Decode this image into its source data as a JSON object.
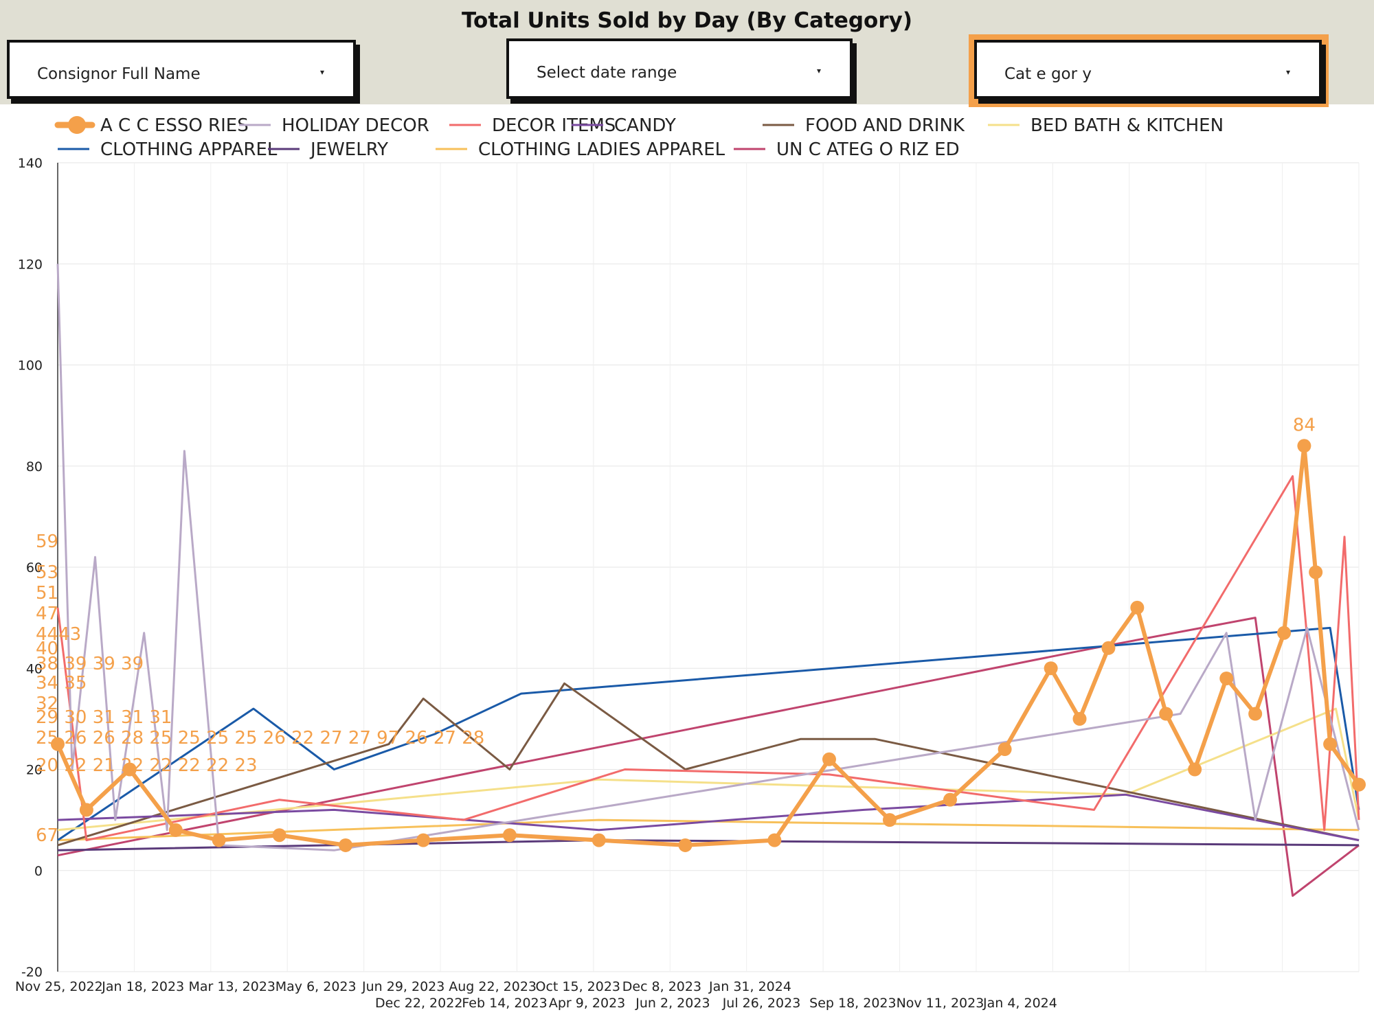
{
  "title": "Total Units Sold by Day (By Category)",
  "filters": {
    "consignor": "Consignor Full Name",
    "date_range": "Select date range",
    "category": "Cat e gor y",
    "caret": "▾"
  },
  "colors": {
    "background_band": "#e0dfd3",
    "category_highlight": "#f4a04a"
  },
  "chart_data": {
    "type": "line",
    "title": "Total Units Sold by Day (By Category)",
    "xlabel": "",
    "ylabel": "",
    "ylim": [
      -20,
      140
    ],
    "y_ticks": [
      140,
      120,
      100,
      80,
      60,
      40,
      20,
      0,
      -20
    ],
    "x_range": [
      "2022-11-25",
      "2024-02-20"
    ],
    "x_ticks_row1": [
      "Nov 25, 2022",
      "Jan 18, 2023",
      "Mar 13, 2023",
      "May 6, 2023",
      "Jun 29, 2023",
      "Aug 22, 2023",
      "Oct 15, 2023",
      "Dec 8, 2023",
      "Jan 31, 2024"
    ],
    "x_ticks_row2": [
      "Dec 22, 2022",
      "Feb 14, 2023",
      "Apr 9, 2023",
      "Jun 2, 2023",
      "Jul 26, 2023",
      "Sep 18, 2023",
      "Nov 11, 2023",
      "Jan 4, 2024"
    ],
    "grid": true,
    "legend_position": "top",
    "series": [
      {
        "name": "A C C ESSO RIES",
        "color": "#f4a04a",
        "points": [
          [
            "2022-11-25",
            25
          ],
          [
            "2022-12-05",
            12
          ],
          [
            "2022-12-20",
            20
          ],
          [
            "2023-01-05",
            8
          ],
          [
            "2023-01-20",
            6
          ],
          [
            "2023-02-10",
            7
          ],
          [
            "2023-03-05",
            5
          ],
          [
            "2023-04-01",
            6
          ],
          [
            "2023-05-01",
            7
          ],
          [
            "2023-06-01",
            6
          ],
          [
            "2023-07-01",
            5
          ],
          [
            "2023-08-01",
            6
          ],
          [
            "2023-08-20",
            22
          ],
          [
            "2023-09-10",
            10
          ],
          [
            "2023-10-01",
            14
          ],
          [
            "2023-10-20",
            24
          ],
          [
            "2023-11-05",
            40
          ],
          [
            "2023-11-15",
            30
          ],
          [
            "2023-11-25",
            44
          ],
          [
            "2023-12-05",
            52
          ],
          [
            "2023-12-15",
            31
          ],
          [
            "2023-12-25",
            20
          ],
          [
            "2024-01-05",
            38
          ],
          [
            "2024-01-15",
            31
          ],
          [
            "2024-01-25",
            47
          ],
          [
            "2024-02-01",
            84
          ],
          [
            "2024-02-05",
            59
          ],
          [
            "2024-02-10",
            25
          ],
          [
            "2024-02-20",
            17
          ]
        ]
      },
      {
        "name": "HOLIDAY DECOR",
        "color": "#b9a9c7",
        "points": [
          [
            "2022-11-25",
            120
          ],
          [
            "2022-11-30",
            20
          ],
          [
            "2022-12-08",
            62
          ],
          [
            "2022-12-15",
            10
          ],
          [
            "2022-12-25",
            47
          ],
          [
            "2023-01-02",
            8
          ],
          [
            "2023-01-08",
            83
          ],
          [
            "2023-01-20",
            5
          ],
          [
            "2023-03-01",
            4
          ],
          [
            "2023-12-20",
            31
          ],
          [
            "2024-01-05",
            47
          ],
          [
            "2024-01-15",
            10
          ],
          [
            "2024-02-02",
            48
          ],
          [
            "2024-02-20",
            8
          ]
        ]
      },
      {
        "name": "DECOR ITEMS",
        "color": "#f26b6b",
        "points": [
          [
            "2022-11-25",
            52
          ],
          [
            "2022-12-05",
            6
          ],
          [
            "2023-02-10",
            14
          ],
          [
            "2023-04-15",
            10
          ],
          [
            "2023-06-10",
            20
          ],
          [
            "2023-08-20",
            19
          ],
          [
            "2023-11-20",
            12
          ],
          [
            "2024-01-28",
            78
          ],
          [
            "2024-02-08",
            8
          ],
          [
            "2024-02-15",
            66
          ],
          [
            "2024-02-20",
            10
          ]
        ]
      },
      {
        "name": "CANDY",
        "color": "#7a4aa0",
        "points": [
          [
            "2022-11-25",
            10
          ],
          [
            "2023-03-01",
            12
          ],
          [
            "2023-06-01",
            8
          ],
          [
            "2023-09-01",
            12
          ],
          [
            "2023-12-01",
            15
          ],
          [
            "2024-02-20",
            6
          ]
        ]
      },
      {
        "name": "FOOD AND DRINK",
        "color": "#7a5a43",
        "points": [
          [
            "2022-11-25",
            5
          ],
          [
            "2023-03-20",
            25
          ],
          [
            "2023-04-01",
            34
          ],
          [
            "2023-05-01",
            20
          ],
          [
            "2023-05-20",
            37
          ],
          [
            "2023-07-01",
            20
          ],
          [
            "2023-08-10",
            26
          ],
          [
            "2023-09-05",
            26
          ],
          [
            "2024-02-20",
            6
          ]
        ]
      },
      {
        "name": "BED BATH & KITCHEN",
        "color": "#f5e08a",
        "points": [
          [
            "2022-11-25",
            8
          ],
          [
            "2023-06-01",
            18
          ],
          [
            "2023-12-01",
            15
          ],
          [
            "2024-02-12",
            32
          ],
          [
            "2024-02-20",
            10
          ]
        ]
      },
      {
        "name": "CLOTHING APPAREL",
        "color": "#1a5aa8",
        "points": [
          [
            "2022-11-25",
            6
          ],
          [
            "2023-02-01",
            32
          ],
          [
            "2023-03-01",
            20
          ],
          [
            "2023-04-05",
            27
          ],
          [
            "2023-05-05",
            35
          ],
          [
            "2024-02-10",
            48
          ],
          [
            "2024-02-20",
            12
          ]
        ]
      },
      {
        "name": "JEWELRY",
        "color": "#5a3a7a",
        "points": [
          [
            "2022-11-25",
            4
          ],
          [
            "2023-06-01",
            6
          ],
          [
            "2024-02-20",
            5
          ]
        ]
      },
      {
        "name": "CLOTHING LADIES APPAREL",
        "color": "#f7c05a",
        "points": [
          [
            "2022-11-25",
            6
          ],
          [
            "2023-06-01",
            10
          ],
          [
            "2024-02-20",
            8
          ]
        ]
      },
      {
        "name": "UN C ATEG O RIZ ED",
        "color": "#c0446e",
        "points": [
          [
            "2022-11-25",
            3
          ],
          [
            "2023-11-20",
            44
          ],
          [
            "2024-01-15",
            50
          ],
          [
            "2024-01-28",
            -5
          ],
          [
            "2024-02-20",
            5
          ]
        ]
      }
    ],
    "data_labels": [
      {
        "series": "A C C ESSO RIES",
        "labels": [
          "59",
          "53",
          "51",
          "47",
          "4443",
          "40",
          "38 39 39 39",
          "34 35",
          "32",
          "29 30 31 31 31",
          "25 26 26 28 25 25 25 25 26 22 27 27 97 26 27 28",
          "20 22 21 22 22 22 22 23",
          "67",
          "84"
        ]
      }
    ]
  }
}
